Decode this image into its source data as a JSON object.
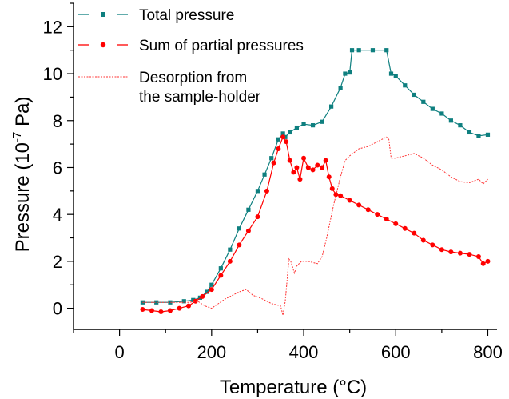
{
  "chart_data": {
    "type": "line",
    "xlabel": "Temperature (°C)",
    "ylabel_main": "Pressure (10",
    "ylabel_sup": "-7",
    "ylabel_unit": " Pa)",
    "xlim": [
      -100,
      820
    ],
    "ylim": [
      -0.9,
      13
    ],
    "xticks": [
      0,
      200,
      400,
      600,
      800
    ],
    "yticks": [
      0,
      2,
      4,
      6,
      8,
      10,
      12
    ],
    "xtick_labels": [
      "0",
      "200",
      "400",
      "600",
      "800"
    ],
    "ytick_labels": [
      "0",
      "2",
      "4",
      "6",
      "8",
      "10",
      "12"
    ],
    "legend_position": "top-left",
    "series": [
      {
        "name": "Total pressure",
        "color": "#0e7f7f",
        "style": "line-square",
        "x": [
          50,
          80,
          110,
          140,
          160,
          175,
          190,
          200,
          220,
          240,
          260,
          280,
          300,
          315,
          330,
          345,
          355,
          360,
          370,
          385,
          400,
          420,
          440,
          460,
          480,
          490,
          500,
          505,
          520,
          550,
          580,
          590,
          600,
          620,
          640,
          660,
          680,
          700,
          720,
          740,
          760,
          780,
          800
        ],
        "y": [
          0.25,
          0.25,
          0.25,
          0.3,
          0.35,
          0.45,
          0.7,
          1.0,
          1.7,
          2.5,
          3.4,
          4.2,
          5.0,
          5.7,
          6.4,
          7.2,
          7.45,
          7.3,
          7.5,
          7.7,
          7.85,
          7.8,
          7.95,
          8.6,
          9.4,
          10.0,
          10.05,
          11.0,
          11.0,
          11.0,
          11.0,
          10.0,
          9.9,
          9.5,
          9.1,
          8.8,
          8.5,
          8.3,
          8.0,
          7.8,
          7.5,
          7.35,
          7.4
        ]
      },
      {
        "name": "Sum of partial pressures",
        "color": "#ff0000",
        "style": "line-circle",
        "x": [
          50,
          70,
          90,
          110,
          130,
          150,
          165,
          180,
          200,
          220,
          240,
          260,
          280,
          300,
          320,
          335,
          345,
          355,
          362,
          370,
          378,
          385,
          392,
          400,
          410,
          420,
          430,
          440,
          448,
          455,
          462,
          470,
          480,
          500,
          520,
          540,
          560,
          580,
          600,
          620,
          640,
          660,
          680,
          700,
          720,
          740,
          760,
          780,
          790,
          800
        ],
        "y": [
          -0.05,
          -0.1,
          -0.15,
          -0.1,
          0.0,
          0.1,
          0.3,
          0.5,
          0.8,
          1.4,
          2.0,
          2.7,
          3.3,
          3.9,
          5.0,
          6.2,
          6.8,
          7.3,
          7.1,
          6.3,
          5.8,
          6.0,
          5.5,
          6.4,
          6.0,
          5.9,
          6.1,
          6.0,
          6.3,
          5.6,
          5.1,
          4.85,
          4.8,
          4.6,
          4.4,
          4.2,
          4.0,
          3.8,
          3.6,
          3.4,
          3.2,
          2.9,
          2.7,
          2.5,
          2.4,
          2.35,
          2.3,
          2.2,
          1.9,
          2.0
        ]
      },
      {
        "name": "Desorption from the sample-holder",
        "color": "#ff3333",
        "style": "dotted",
        "x": [
          50,
          100,
          150,
          170,
          185,
          200,
          230,
          260,
          275,
          290,
          310,
          330,
          350,
          355,
          360,
          368,
          372,
          380,
          385,
          395,
          410,
          430,
          440,
          450,
          465,
          480,
          490,
          500,
          520,
          540,
          560,
          580,
          585,
          590,
          600,
          620,
          640,
          660,
          680,
          700,
          720,
          740,
          760,
          780,
          790,
          800
        ],
        "y": [
          0.25,
          0.25,
          0.25,
          0.3,
          0.1,
          0.0,
          0.4,
          0.7,
          0.8,
          0.55,
          0.4,
          0.2,
          0.1,
          -0.3,
          0.3,
          2.1,
          2.0,
          1.5,
          1.8,
          2.0,
          2.0,
          1.9,
          2.2,
          3.0,
          4.4,
          5.6,
          6.3,
          6.5,
          6.8,
          6.9,
          7.1,
          7.3,
          7.2,
          6.4,
          6.4,
          6.5,
          6.6,
          6.4,
          6.1,
          5.9,
          5.6,
          5.4,
          5.35,
          5.5,
          5.3,
          5.5
        ]
      }
    ]
  },
  "legend": {
    "items": [
      {
        "lines": [
          "Total pressure"
        ],
        "color": "#0e7f7f",
        "style": "line-square"
      },
      {
        "lines": [
          "Sum of partial pressures"
        ],
        "color": "#ff0000",
        "style": "line-circle"
      },
      {
        "lines": [
          "Desorption from",
          "the sample-holder"
        ],
        "color": "#ff3333",
        "style": "dotted"
      }
    ]
  }
}
